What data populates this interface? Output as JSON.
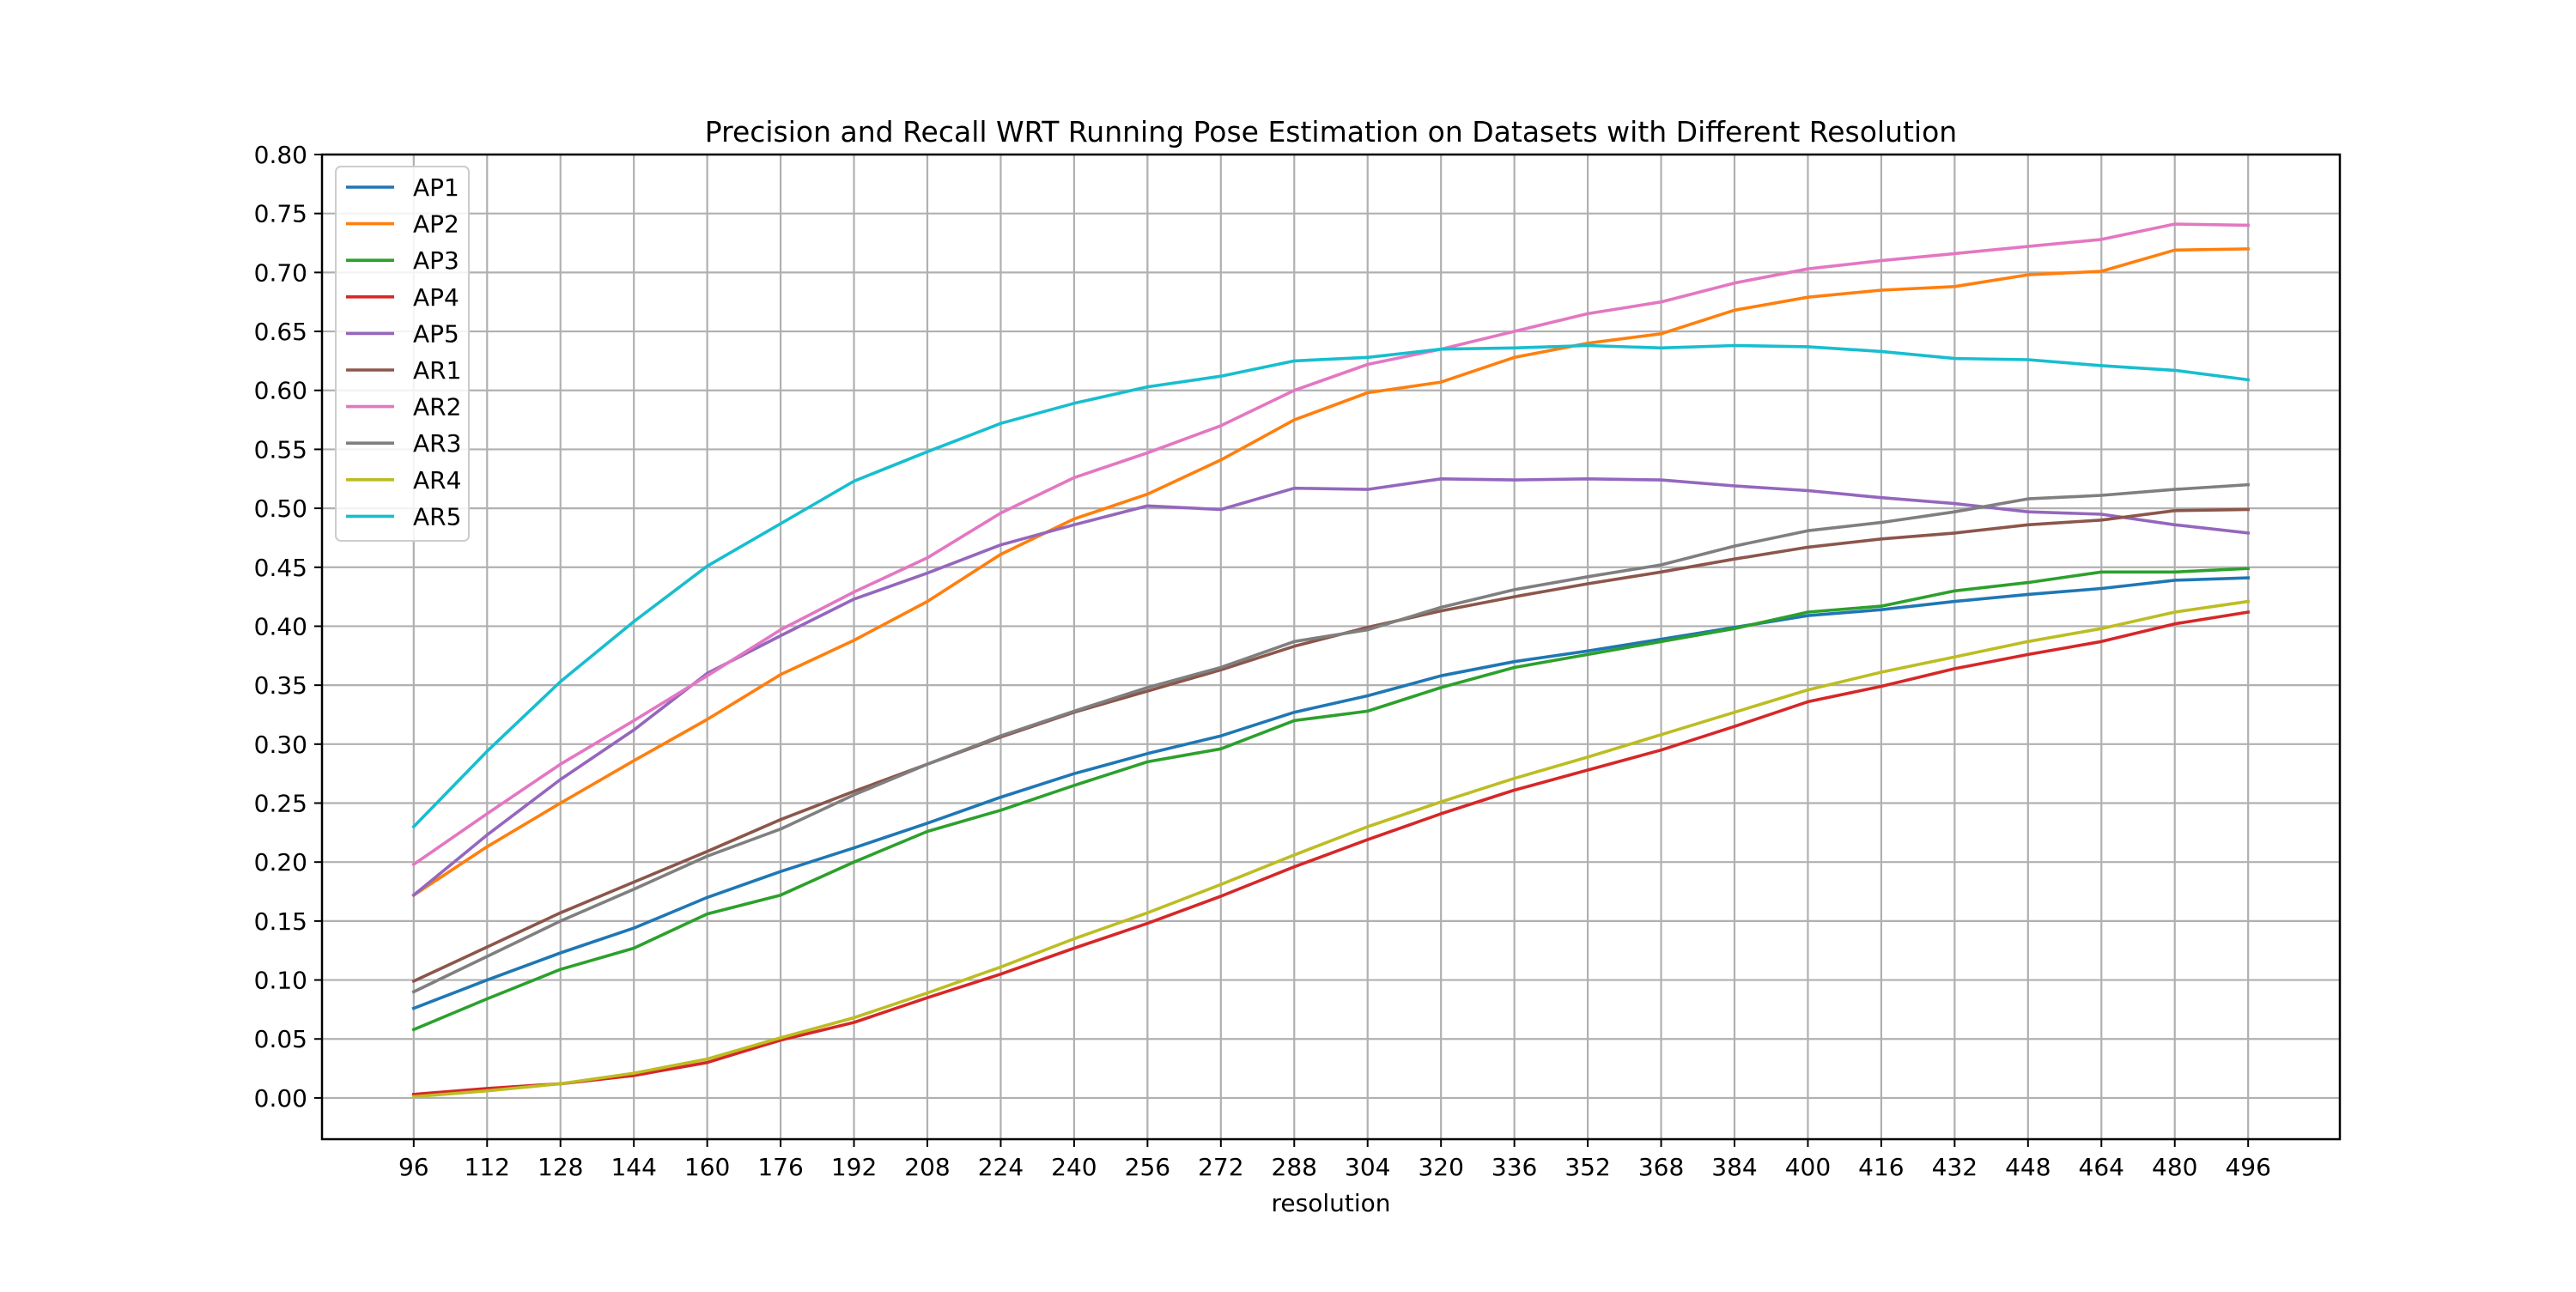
{
  "chart_data": {
    "type": "line",
    "title": "Precision and Recall WRT Running Pose Estimation on Datasets with Different Resolution",
    "xlabel": "resolution",
    "ylabel": "",
    "x": [
      96,
      112,
      128,
      144,
      160,
      176,
      192,
      208,
      224,
      240,
      256,
      272,
      288,
      304,
      320,
      336,
      352,
      368,
      384,
      400,
      416,
      432,
      448,
      464,
      480,
      496
    ],
    "x_tick_labels": [
      "96",
      "112",
      "128",
      "144",
      "160",
      "176",
      "192",
      "208",
      "224",
      "240",
      "256",
      "272",
      "288",
      "304",
      "320",
      "336",
      "352",
      "368",
      "384",
      "400",
      "416",
      "432",
      "448",
      "464",
      "480",
      "496"
    ],
    "xlim": [
      76,
      516
    ],
    "ylim": [
      -0.035,
      0.8
    ],
    "y_ticks": [
      0.0,
      0.05,
      0.1,
      0.15,
      0.2,
      0.25,
      0.3,
      0.35,
      0.4,
      0.45,
      0.5,
      0.55,
      0.6,
      0.65,
      0.7,
      0.75,
      0.8
    ],
    "y_tick_labels": [
      "0.00",
      "0.05",
      "0.10",
      "0.15",
      "0.20",
      "0.25",
      "0.30",
      "0.35",
      "0.40",
      "0.45",
      "0.50",
      "0.55",
      "0.60",
      "0.65",
      "0.70",
      "0.75",
      "0.80"
    ],
    "grid": true,
    "legend_position": "upper-left",
    "series": [
      {
        "name": "AP1",
        "color": "#1f77b4",
        "values": [
          0.076,
          0.1,
          0.123,
          0.144,
          0.17,
          0.192,
          0.212,
          0.233,
          0.255,
          0.275,
          0.292,
          0.307,
          0.327,
          0.341,
          0.358,
          0.37,
          0.379,
          0.389,
          0.399,
          0.409,
          0.414,
          0.421,
          0.427,
          0.432,
          0.439,
          0.441
        ]
      },
      {
        "name": "AP2",
        "color": "#ff7f0e",
        "values": [
          0.172,
          0.213,
          0.25,
          0.286,
          0.321,
          0.359,
          0.388,
          0.421,
          0.461,
          0.491,
          0.512,
          0.541,
          0.575,
          0.598,
          0.607,
          0.628,
          0.64,
          0.648,
          0.668,
          0.679,
          0.685,
          0.688,
          0.698,
          0.701,
          0.719,
          0.72
        ]
      },
      {
        "name": "AP3",
        "color": "#2ca02c",
        "values": [
          0.058,
          0.084,
          0.109,
          0.127,
          0.156,
          0.172,
          0.2,
          0.226,
          0.244,
          0.265,
          0.285,
          0.296,
          0.32,
          0.328,
          0.348,
          0.365,
          0.376,
          0.387,
          0.398,
          0.412,
          0.417,
          0.43,
          0.437,
          0.446,
          0.446,
          0.449
        ]
      },
      {
        "name": "AP4",
        "color": "#d62728",
        "values": [
          0.003,
          0.008,
          0.012,
          0.019,
          0.03,
          0.049,
          0.064,
          0.085,
          0.105,
          0.127,
          0.148,
          0.171,
          0.196,
          0.219,
          0.241,
          0.261,
          0.278,
          0.295,
          0.315,
          0.336,
          0.349,
          0.364,
          0.376,
          0.387,
          0.402,
          0.412
        ]
      },
      {
        "name": "AP5",
        "color": "#9467bd",
        "values": [
          0.172,
          0.223,
          0.27,
          0.312,
          0.36,
          0.392,
          0.423,
          0.445,
          0.469,
          0.486,
          0.502,
          0.499,
          0.517,
          0.516,
          0.525,
          0.524,
          0.525,
          0.524,
          0.519,
          0.515,
          0.509,
          0.504,
          0.497,
          0.495,
          0.486,
          0.479
        ]
      },
      {
        "name": "AR1",
        "color": "#8c564b",
        "values": [
          0.099,
          0.128,
          0.157,
          0.183,
          0.209,
          0.236,
          0.26,
          0.283,
          0.306,
          0.327,
          0.345,
          0.363,
          0.383,
          0.399,
          0.413,
          0.425,
          0.436,
          0.446,
          0.457,
          0.467,
          0.474,
          0.479,
          0.486,
          0.49,
          0.498,
          0.499
        ]
      },
      {
        "name": "AR2",
        "color": "#e377c2",
        "values": [
          0.198,
          0.241,
          0.283,
          0.32,
          0.358,
          0.397,
          0.429,
          0.458,
          0.496,
          0.526,
          0.547,
          0.57,
          0.6,
          0.622,
          0.635,
          0.65,
          0.665,
          0.675,
          0.691,
          0.703,
          0.71,
          0.716,
          0.722,
          0.728,
          0.741,
          0.74
        ]
      },
      {
        "name": "AR3",
        "color": "#7f7f7f",
        "values": [
          0.09,
          0.12,
          0.15,
          0.177,
          0.205,
          0.228,
          0.257,
          0.283,
          0.307,
          0.328,
          0.348,
          0.365,
          0.387,
          0.397,
          0.416,
          0.431,
          0.442,
          0.452,
          0.468,
          0.481,
          0.488,
          0.497,
          0.508,
          0.511,
          0.516,
          0.52
        ]
      },
      {
        "name": "AR4",
        "color": "#bcbd22",
        "values": [
          0.001,
          0.006,
          0.012,
          0.021,
          0.033,
          0.051,
          0.068,
          0.089,
          0.111,
          0.135,
          0.157,
          0.181,
          0.206,
          0.23,
          0.251,
          0.271,
          0.289,
          0.308,
          0.327,
          0.346,
          0.361,
          0.374,
          0.387,
          0.398,
          0.412,
          0.421
        ]
      },
      {
        "name": "AR5",
        "color": "#17becf",
        "values": [
          0.23,
          0.294,
          0.353,
          0.404,
          0.451,
          0.487,
          0.523,
          0.548,
          0.572,
          0.589,
          0.603,
          0.612,
          0.625,
          0.628,
          0.635,
          0.636,
          0.638,
          0.636,
          0.638,
          0.637,
          0.633,
          0.627,
          0.626,
          0.621,
          0.617,
          0.609
        ]
      }
    ]
  }
}
